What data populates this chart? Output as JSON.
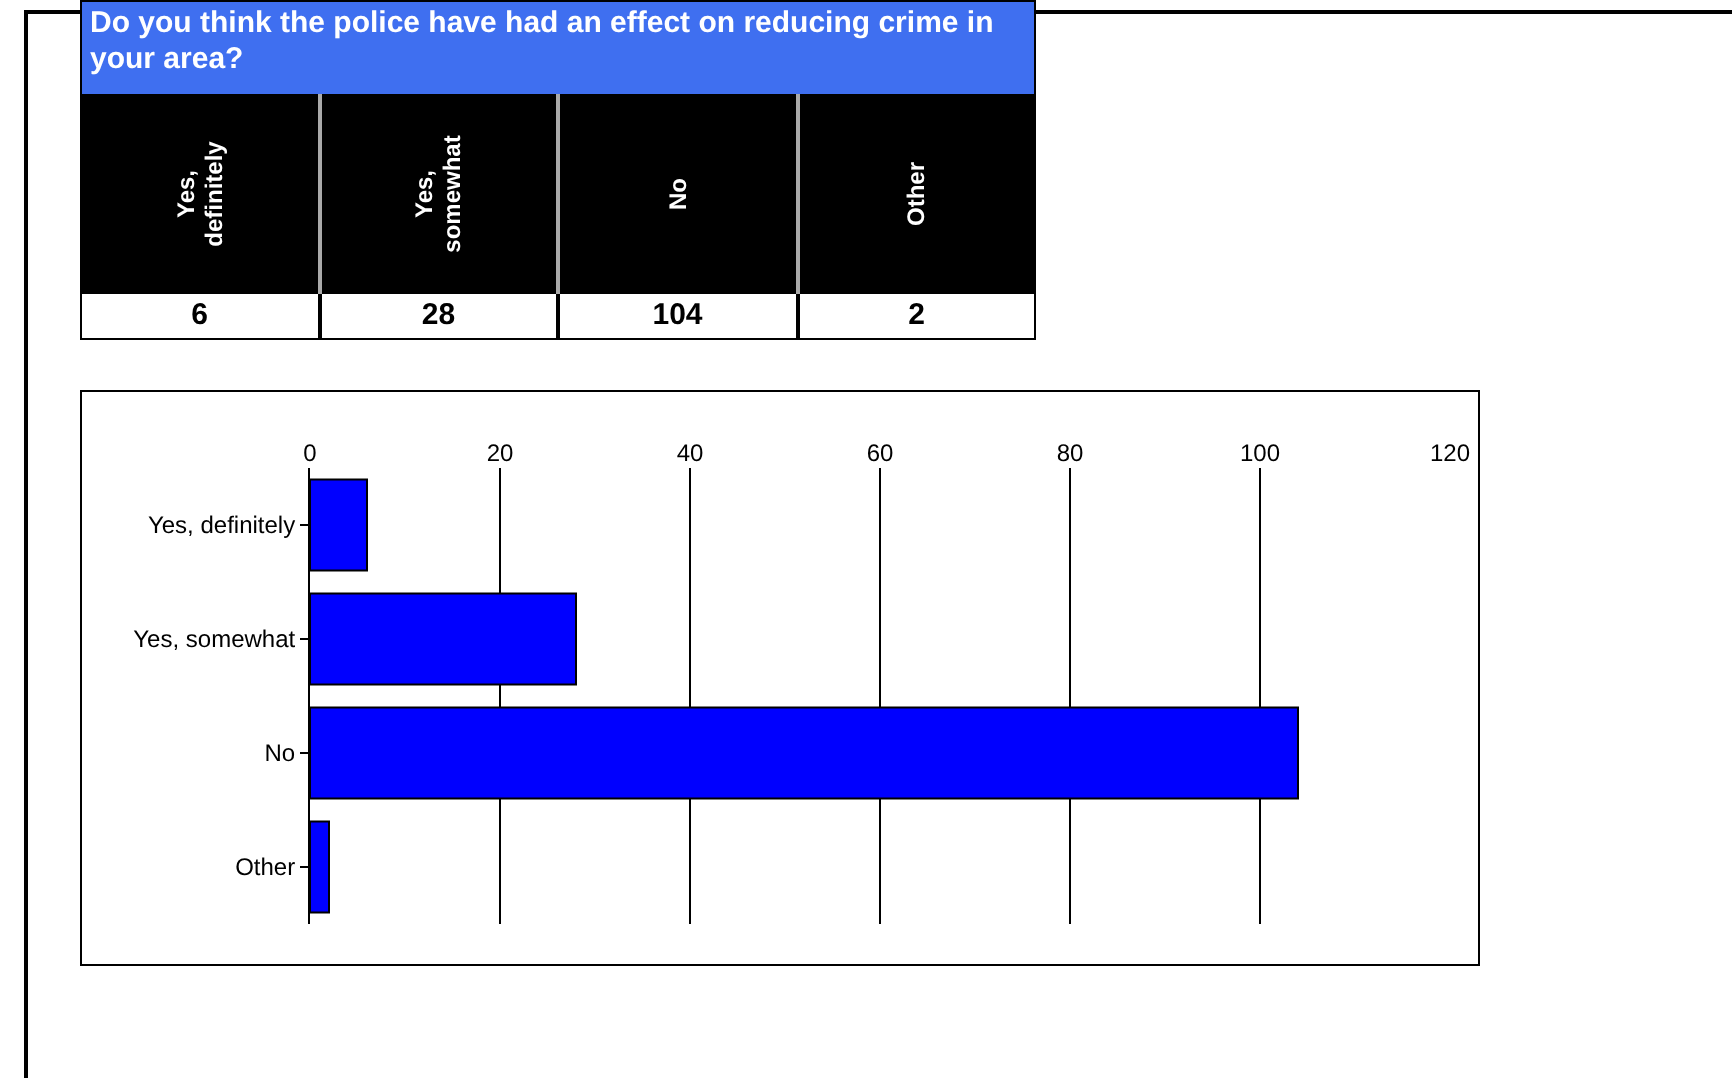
{
  "chart_data": [
    {
      "type": "other",
      "title": "Do you think the police have had an effect on reducing crime in your area?",
      "categories": [
        "Yes, definitely",
        "Yes, somewhat",
        "No",
        "Other"
      ],
      "values": [
        6,
        28,
        104,
        2
      ],
      "data_labels": true
    },
    {
      "type": "bar",
      "orientation": "horizontal",
      "categories": [
        "Yes, definitely",
        "Yes, somewhat",
        "No",
        "Other"
      ],
      "values": [
        6,
        28,
        104,
        2
      ],
      "color": "#0000ff",
      "xlim": [
        0,
        120
      ],
      "xticks": [
        0,
        20,
        40,
        60,
        80,
        100,
        120
      ],
      "grid": "x"
    }
  ]
}
